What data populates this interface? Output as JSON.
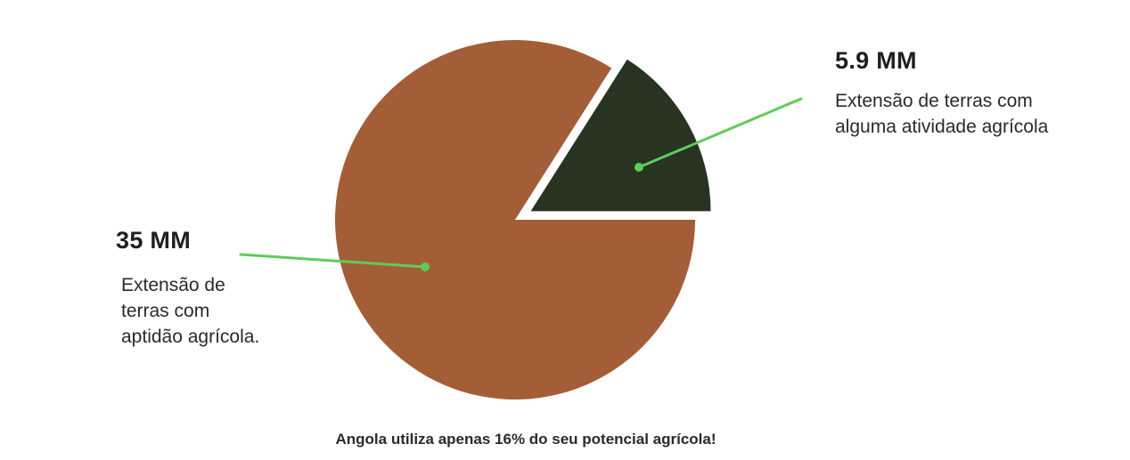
{
  "chart_data": {
    "type": "pie",
    "slices": [
      {
        "value_label": "35 MM",
        "description": "Extensão de\nterras com\naptidão agrícola.",
        "color": "#a45e37"
      },
      {
        "value_label": "5.9 MM",
        "description": "Extensão de terras com\nalguma atividade agrícola",
        "color": "#283322"
      }
    ],
    "exploded_slice_percent": 16,
    "leader_line_color": "#5fcb5a",
    "footer": "Angola utiliza apenas 16% do seu potencial agrícola!"
  }
}
